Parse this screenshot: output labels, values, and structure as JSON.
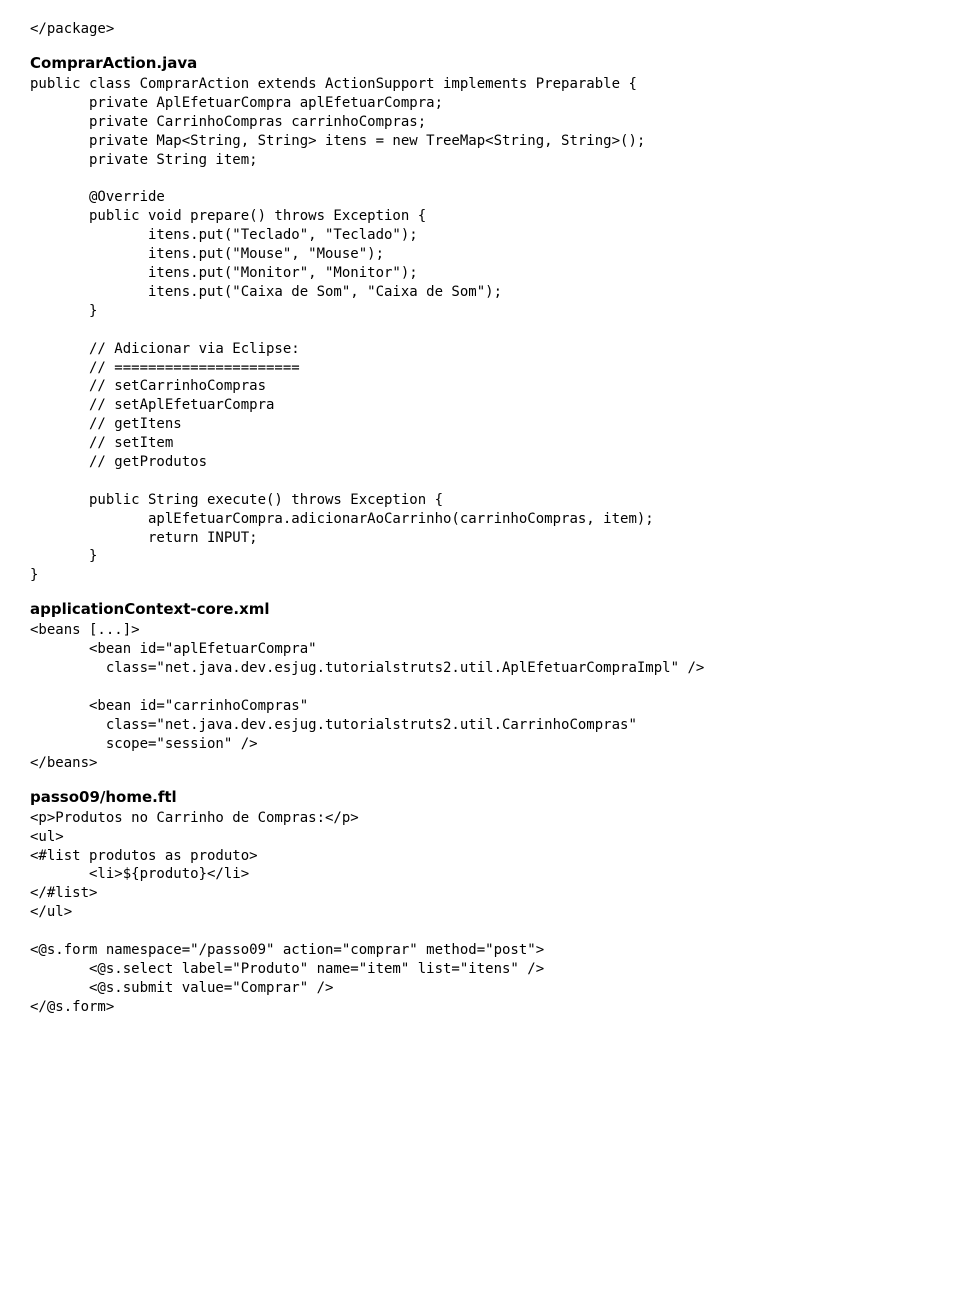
{
  "line_close_package": "</package>",
  "heading_comprar": "ComprarAction.java",
  "java_lines": [
    "public class ComprarAction extends ActionSupport implements Preparable {",
    "       private AplEfetuarCompra aplEfetuarCompra;",
    "       private CarrinhoCompras carrinhoCompras;",
    "       private Map<String, String> itens = new TreeMap<String, String>();",
    "       private String item;",
    "",
    "       @Override",
    "       public void prepare() throws Exception {",
    "              itens.put(\"Teclado\", \"Teclado\");",
    "              itens.put(\"Mouse\", \"Mouse\");",
    "              itens.put(\"Monitor\", \"Monitor\");",
    "              itens.put(\"Caixa de Som\", \"Caixa de Som\");",
    "       }",
    "",
    "       // Adicionar via Eclipse:",
    "       // ======================",
    "       // setCarrinhoCompras",
    "       // setAplEfetuarCompra",
    "       // getItens",
    "       // setItem",
    "       // getProdutos",
    "",
    "       public String execute() throws Exception {",
    "              aplEfetuarCompra.adicionarAoCarrinho(carrinhoCompras, item);",
    "              return INPUT;",
    "       }",
    "}"
  ],
  "heading_appctx": "applicationContext-core.xml",
  "xml_lines": [
    "<beans [...]>",
    "       <bean id=\"aplEfetuarCompra\"",
    "         class=\"net.java.dev.esjug.tutorialstruts2.util.AplEfetuarCompraImpl\" />",
    "",
    "       <bean id=\"carrinhoCompras\"",
    "         class=\"net.java.dev.esjug.tutorialstruts2.util.CarrinhoCompras\"",
    "         scope=\"session\" />",
    "</beans>"
  ],
  "heading_ftl": "passo09/home.ftl",
  "ftl_lines": [
    "<p>Produtos no Carrinho de Compras:</p>",
    "<ul>",
    "<#list produtos as produto>",
    "       <li>${produto}</li>",
    "</#list>",
    "</ul>",
    "",
    "<@s.form namespace=\"/passo09\" action=\"comprar\" method=\"post\">",
    "       <@s.select label=\"Produto\" name=\"item\" list=\"itens\" />",
    "       <@s.submit value=\"Comprar\" />",
    "</@s.form>"
  ]
}
